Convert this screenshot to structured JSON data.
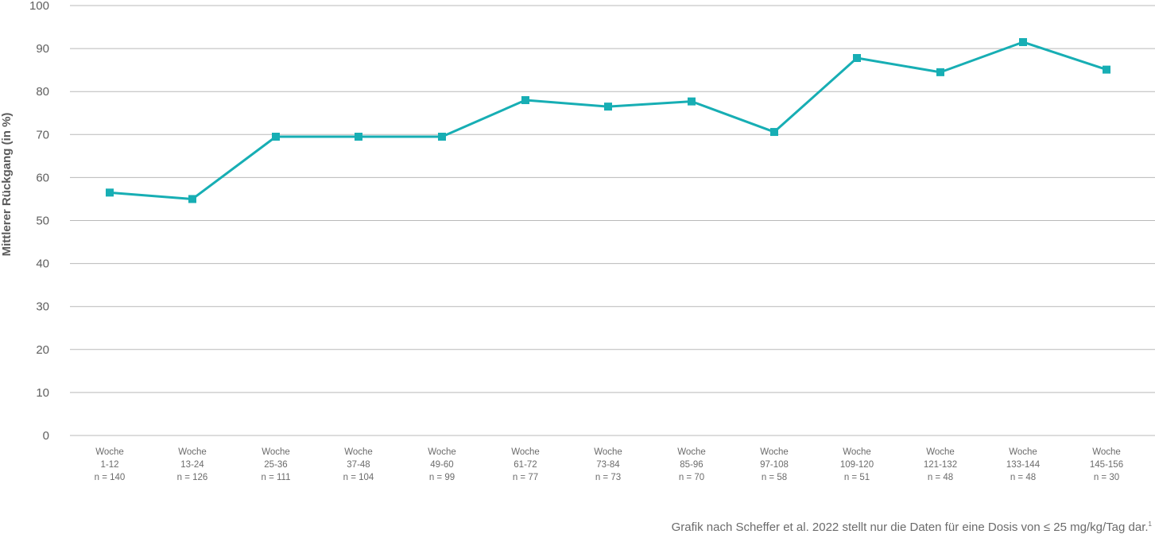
{
  "chart_data": {
    "type": "line",
    "title": "",
    "xlabel": "",
    "ylabel": "Mittlerer Rückgang (in %)",
    "ylim": [
      0,
      100
    ],
    "yticks": [
      "0",
      "10",
      "20",
      "30",
      "40",
      "50",
      "60",
      "70",
      "80",
      "90",
      "100"
    ],
    "grid": true,
    "categories": [
      {
        "label": "Woche",
        "range": "1-12",
        "n": "n = 140"
      },
      {
        "label": "Woche",
        "range": "13-24",
        "n": "n = 126"
      },
      {
        "label": "Woche",
        "range": "25-36",
        "n": "n = 111"
      },
      {
        "label": "Woche",
        "range": "37-48",
        "n": "n = 104"
      },
      {
        "label": "Woche",
        "range": "49-60",
        "n": "n = 99"
      },
      {
        "label": "Woche",
        "range": "61-72",
        "n": "n = 77"
      },
      {
        "label": "Woche",
        "range": "73-84",
        "n": "n = 73"
      },
      {
        "label": "Woche",
        "range": "85-96",
        "n": "n = 70"
      },
      {
        "label": "Woche",
        "range": "97-108",
        "n": "n = 58"
      },
      {
        "label": "Woche",
        "range": "109-120",
        "n": "n = 51"
      },
      {
        "label": "Woche",
        "range": "121-132",
        "n": "n = 48"
      },
      {
        "label": "Woche",
        "range": "133-144",
        "n": "n = 48"
      },
      {
        "label": "Woche",
        "range": "145-156",
        "n": "n = 30"
      }
    ],
    "series": [
      {
        "values": [
          56.5,
          55.0,
          69.5,
          69.5,
          69.5,
          78.0,
          76.5,
          77.7,
          70.6,
          87.8,
          84.5,
          91.5,
          85.1
        ]
      }
    ],
    "colors": {
      "series": "#17aeb4",
      "grid": "#b9b9b9"
    }
  },
  "footnote": {
    "text": "Grafik nach Scheffer et al. 2022 stellt nur die Daten für eine Dosis von ≤ 25 mg/kg/Tag dar.",
    "ref": "1"
  }
}
